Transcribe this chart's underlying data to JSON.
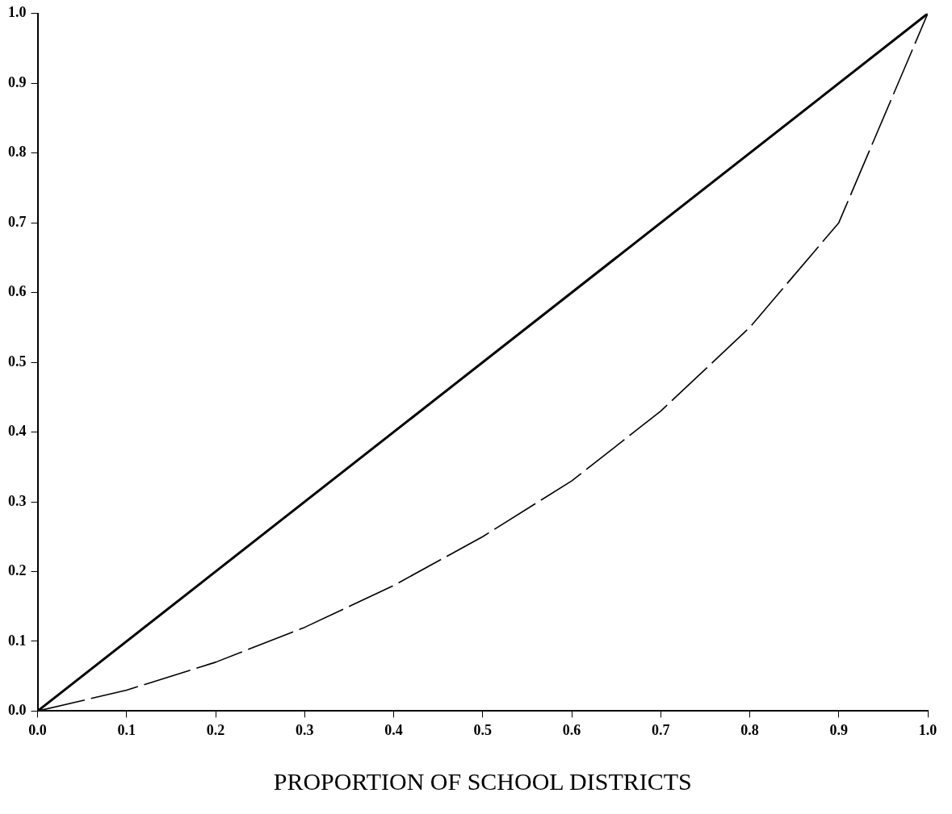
{
  "chart_data": {
    "type": "line",
    "xlabel": "PROPORTION OF SCHOOL DISTRICTS",
    "x": [
      0,
      0.1,
      0.2,
      0.3,
      0.4,
      0.5,
      0.6,
      0.7,
      0.8,
      0.9,
      1.0
    ],
    "series": [
      {
        "color": "#000000",
        "line_style": "solid",
        "x": [
          0,
          1
        ],
        "values": [
          0,
          1
        ]
      },
      {
        "color": "#000000",
        "line_style": "dashed",
        "values": [
          0,
          0.03,
          0.07,
          0.12,
          0.18,
          0.25,
          0.33,
          0.43,
          0.55,
          0.7,
          1.0
        ]
      }
    ],
    "xlim": [
      0,
      1
    ],
    "ylim": [
      0,
      1
    ],
    "xticks": [
      {
        "value": 0,
        "label": "0.0"
      },
      {
        "value": 0.1,
        "label": "0.1"
      },
      {
        "value": 0.2,
        "label": "0.2"
      },
      {
        "value": 0.3,
        "label": "0.3"
      },
      {
        "value": 0.4,
        "label": "0.4"
      },
      {
        "value": 0.5,
        "label": "0.5"
      },
      {
        "value": 0.6,
        "label": "0.6"
      },
      {
        "value": 0.7,
        "label": "0.7"
      },
      {
        "value": 0.8,
        "label": "0.8"
      },
      {
        "value": 0.9,
        "label": "0.9"
      },
      {
        "value": 1,
        "label": "1.0"
      }
    ],
    "yticks": [
      {
        "value": 0,
        "label": "0.0"
      },
      {
        "value": 0.1,
        "label": "0.1"
      },
      {
        "value": 0.2,
        "label": "0.2"
      },
      {
        "value": 0.3,
        "label": "0.3"
      },
      {
        "value": 0.4,
        "label": "0.4"
      },
      {
        "value": 0.5,
        "label": "0.5"
      },
      {
        "value": 0.6,
        "label": "0.6"
      },
      {
        "value": 0.7,
        "label": "0.7"
      },
      {
        "value": 0.8,
        "label": "0.8"
      },
      {
        "value": 0.9,
        "label": "0.9"
      },
      {
        "value": 1,
        "label": "1.0"
      }
    ],
    "grid": false,
    "legend": false,
    "marker": "none"
  }
}
